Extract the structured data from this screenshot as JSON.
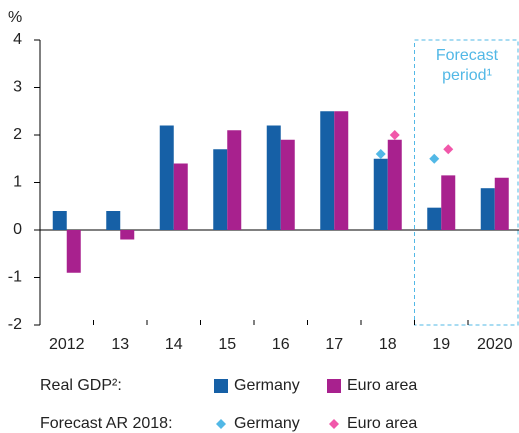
{
  "chart_data": {
    "type": "bar",
    "y_label": "%",
    "annotation": [
      "Forecast",
      "period¹"
    ],
    "categories": [
      "2012",
      "13",
      "14",
      "15",
      "16",
      "17",
      "18",
      "19",
      "2020"
    ],
    "ylim": [
      -2,
      4
    ],
    "yticks": [
      -2,
      -1,
      0,
      1,
      2,
      3,
      4
    ],
    "series_label": "Real GDP²:",
    "series": [
      {
        "name": "Germany",
        "color": "#1660a6",
        "values": [
          0.4,
          0.4,
          2.2,
          1.7,
          2.2,
          2.5,
          1.5,
          0.47,
          0.88
        ]
      },
      {
        "name": "Euro area",
        "color": "#a8218e",
        "values": [
          -0.9,
          -0.2,
          1.4,
          2.1,
          1.9,
          2.5,
          1.9,
          1.15,
          1.1
        ]
      }
    ],
    "forecast_series_label": "Forecast AR 2018:",
    "forecast_series": [
      {
        "name": "Germany",
        "color": "#52b8e6",
        "values": [
          null,
          null,
          null,
          null,
          null,
          null,
          1.6,
          1.5,
          null
        ]
      },
      {
        "name": "Euro area",
        "color": "#f157aa",
        "values": [
          null,
          null,
          null,
          null,
          null,
          null,
          2.0,
          1.7,
          null
        ]
      }
    ]
  }
}
